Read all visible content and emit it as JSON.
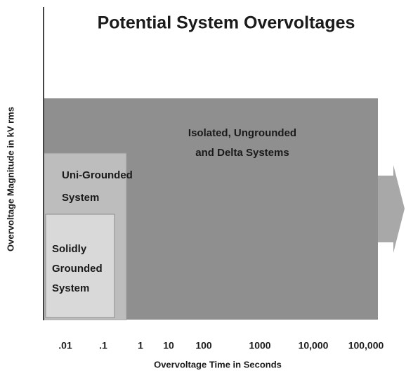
{
  "title": "Potential System Overvoltages",
  "y_axis_label": "Overvoltage Magnitude  in kV rms",
  "x_axis_label": "Overvoltage Time in Seconds",
  "x_tick_labels": [
    ".01",
    ".1",
    "1",
    "10",
    "100",
    "1000",
    "10,000",
    "100,000"
  ],
  "regions": [
    {
      "lines": [
        "Isolated,  Ungrounded",
        "and Delta Systems"
      ]
    },
    {
      "lines": [
        "Uni-Grounded",
        "System"
      ]
    },
    {
      "lines": [
        "Solidly",
        "Grounded",
        "System"
      ]
    }
  ]
}
